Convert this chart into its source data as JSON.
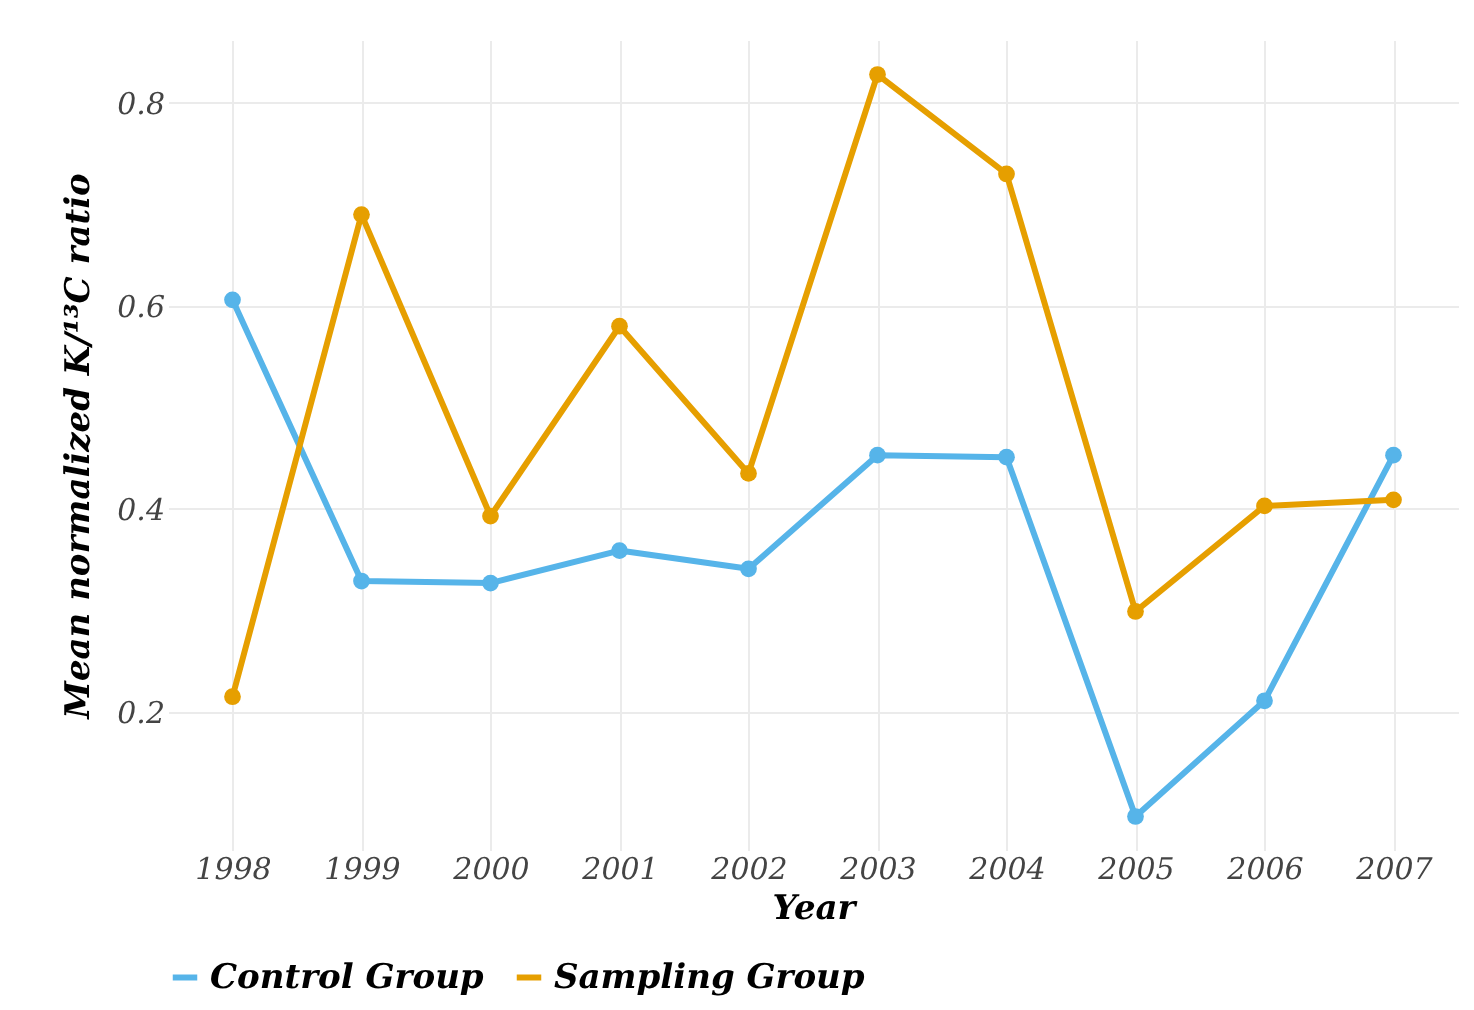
{
  "chart_data": {
    "type": "line",
    "xlabel": "Year",
    "ylabel": "Mean normalized K/¹³C ratio",
    "categories": [
      "1998",
      "1999",
      "2000",
      "2001",
      "2002",
      "2003",
      "2004",
      "2005",
      "2006",
      "2007"
    ],
    "series": [
      {
        "name": "Control Group",
        "color": "#56b4e9",
        "values": [
          0.606,
          0.329,
          0.327,
          0.359,
          0.341,
          0.453,
          0.451,
          0.097,
          0.211,
          0.453
        ]
      },
      {
        "name": "Sampling Group",
        "color": "#e69f00",
        "values": [
          0.215,
          0.69,
          0.393,
          0.58,
          0.435,
          0.828,
          0.73,
          0.299,
          0.403,
          0.409
        ]
      }
    ],
    "ylim": [
      0.064,
      0.862
    ],
    "yticks": [
      0.2,
      0.4,
      0.6,
      0.8
    ],
    "grid": true,
    "legend": "bottom",
    "marker": "circle",
    "line_style": "solid"
  }
}
